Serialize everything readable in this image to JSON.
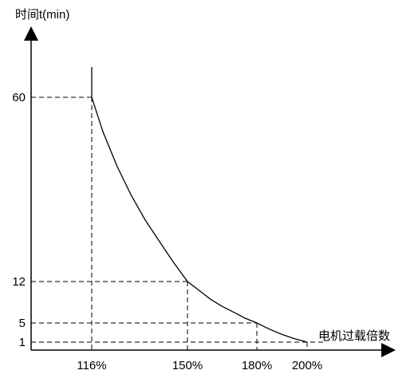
{
  "chart_data": {
    "type": "line",
    "title": "",
    "ylabel": "时间t(min)",
    "xlabel": "电机过载倍数",
    "x_ticks": [
      {
        "label": "116%",
        "value": 116
      },
      {
        "label": "150%",
        "value": 150
      },
      {
        "label": "180%",
        "value": 180
      },
      {
        "label": "200%",
        "value": 200
      }
    ],
    "y_ticks": [
      {
        "label": "60",
        "value": 60
      },
      {
        "label": "12",
        "value": 12
      },
      {
        "label": "5",
        "value": 5
      },
      {
        "label": "1",
        "value": 1
      }
    ],
    "series": [
      {
        "x": [
          116,
          120,
          125,
          130,
          135,
          140,
          145,
          150,
          155,
          160,
          165,
          170,
          175,
          180,
          185,
          190,
          195,
          200
        ],
        "y": [
          60,
          51,
          42,
          34.5,
          28,
          22.5,
          17,
          12,
          10.5,
          9,
          7.8,
          6.8,
          5.8,
          5,
          3.7,
          2.6,
          1.7,
          1
        ]
      }
    ],
    "curve_start": {
      "x": 116,
      "y": 72
    },
    "reference_lines": [
      {
        "x": 116,
        "y": 60
      },
      {
        "x": 150,
        "y": 12
      },
      {
        "x": 180,
        "y": 5
      },
      {
        "x": 200,
        "y": 1
      }
    ],
    "line_color": "#000000",
    "grid": false
  }
}
